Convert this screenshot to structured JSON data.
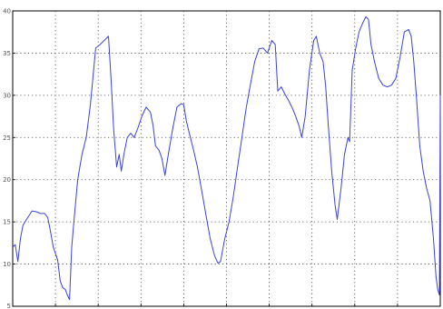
{
  "chart_data": {
    "type": "line",
    "title": "",
    "xlabel": "",
    "ylabel": "",
    "xlim": [
      0,
      100
    ],
    "ylim": [
      5,
      40
    ],
    "grid": true,
    "x_gridlines": [
      10,
      20,
      30,
      40,
      50,
      60,
      70,
      80,
      90
    ],
    "y_ticks": [
      5,
      10,
      15,
      20,
      25,
      30,
      35,
      40
    ],
    "y_tick_labels": [
      "5",
      "10",
      "15",
      "20",
      "25",
      "30",
      "35",
      "40"
    ],
    "series": [
      {
        "name": "",
        "color": "#3b43d6",
        "points": [
          [
            0,
            12
          ],
          [
            0.6,
            12.3
          ],
          [
            1.2,
            10.3
          ],
          [
            1.8,
            13
          ],
          [
            2.4,
            14.6
          ],
          [
            3.5,
            15.5
          ],
          [
            4.5,
            16.3
          ],
          [
            5.5,
            16.2
          ],
          [
            6.5,
            16
          ],
          [
            7.5,
            16
          ],
          [
            8.2,
            15.5
          ],
          [
            8.8,
            14
          ],
          [
            9.5,
            12
          ],
          [
            10.5,
            10.5
          ],
          [
            11.1,
            8
          ],
          [
            11.7,
            7.2
          ],
          [
            12.3,
            7
          ],
          [
            12.8,
            6.3
          ],
          [
            13.3,
            5.8
          ],
          [
            13.8,
            12
          ],
          [
            14.4,
            15.5
          ],
          [
            15.2,
            20
          ],
          [
            16.2,
            23
          ],
          [
            17.2,
            25
          ],
          [
            18.2,
            29
          ],
          [
            19.4,
            35.6
          ],
          [
            20.4,
            36
          ],
          [
            21.4,
            36.5
          ],
          [
            22.4,
            37
          ],
          [
            23.0,
            32
          ],
          [
            23.6,
            26
          ],
          [
            24.3,
            21.5
          ],
          [
            24.9,
            23
          ],
          [
            25.4,
            21
          ],
          [
            26.0,
            23
          ],
          [
            26.8,
            25
          ],
          [
            27.6,
            25.5
          ],
          [
            28.4,
            25
          ],
          [
            29.2,
            26
          ],
          [
            30.2,
            27.5
          ],
          [
            31.2,
            28.6
          ],
          [
            32.2,
            28
          ],
          [
            32.8,
            26.5
          ],
          [
            33.4,
            24
          ],
          [
            34.2,
            23.5
          ],
          [
            34.9,
            22.5
          ],
          [
            35.6,
            20.5
          ],
          [
            36.4,
            23
          ],
          [
            37.4,
            26
          ],
          [
            38.4,
            28.6
          ],
          [
            39.4,
            29
          ],
          [
            40.0,
            28.9
          ],
          [
            40.6,
            27
          ],
          [
            41.4,
            25.3
          ],
          [
            42.2,
            23.7
          ],
          [
            43.2,
            21.5
          ],
          [
            44.2,
            18.7
          ],
          [
            45.2,
            15.8
          ],
          [
            46.2,
            13
          ],
          [
            47.2,
            11
          ],
          [
            48.0,
            10.1
          ],
          [
            48.6,
            10.3
          ],
          [
            49.6,
            13
          ],
          [
            50.6,
            15
          ],
          [
            51.6,
            18
          ],
          [
            52.6,
            21.5
          ],
          [
            53.6,
            25
          ],
          [
            54.6,
            28.5
          ],
          [
            55.6,
            31.3
          ],
          [
            56.6,
            34
          ],
          [
            57.6,
            35.5
          ],
          [
            58.6,
            35.6
          ],
          [
            59.6,
            35
          ],
          [
            60.6,
            36.5
          ],
          [
            61.4,
            36
          ],
          [
            62.0,
            30.5
          ],
          [
            62.8,
            31
          ],
          [
            63.8,
            30
          ],
          [
            64.6,
            29.3
          ],
          [
            65.4,
            28.5
          ],
          [
            66.2,
            27.5
          ],
          [
            67.0,
            26.3
          ],
          [
            67.6,
            25
          ],
          [
            68.4,
            27.5
          ],
          [
            69.4,
            33
          ],
          [
            70.4,
            36.5
          ],
          [
            71.0,
            37
          ],
          [
            71.8,
            35
          ],
          [
            72.6,
            34
          ],
          [
            73.2,
            31
          ],
          [
            73.8,
            26.5
          ],
          [
            74.6,
            21
          ],
          [
            75.4,
            17
          ],
          [
            75.9,
            15.3
          ],
          [
            76.8,
            19
          ],
          [
            77.6,
            23
          ],
          [
            78.4,
            25
          ],
          [
            78.8,
            24.5
          ],
          [
            79.4,
            33
          ],
          [
            80.2,
            35.5
          ],
          [
            81.0,
            37.5
          ],
          [
            81.8,
            38.5
          ],
          [
            82.6,
            39.3
          ],
          [
            83.2,
            39
          ],
          [
            83.8,
            36
          ],
          [
            84.6,
            34
          ],
          [
            85.6,
            32
          ],
          [
            86.6,
            31.2
          ],
          [
            87.6,
            31
          ],
          [
            88.6,
            31.2
          ],
          [
            89.6,
            32
          ],
          [
            90.6,
            34.5
          ],
          [
            91.6,
            37.5
          ],
          [
            92.6,
            37.8
          ],
          [
            93.2,
            37
          ],
          [
            93.8,
            34
          ],
          [
            94.4,
            30
          ],
          [
            95.2,
            24
          ],
          [
            96.0,
            21
          ],
          [
            96.8,
            19
          ],
          [
            97.6,
            17.5
          ],
          [
            98.4,
            13
          ],
          [
            99.0,
            8.5
          ],
          [
            99.4,
            7
          ],
          [
            99.8,
            6.3
          ]
        ]
      }
    ],
    "tail_x_offset": 0,
    "note": ""
  }
}
